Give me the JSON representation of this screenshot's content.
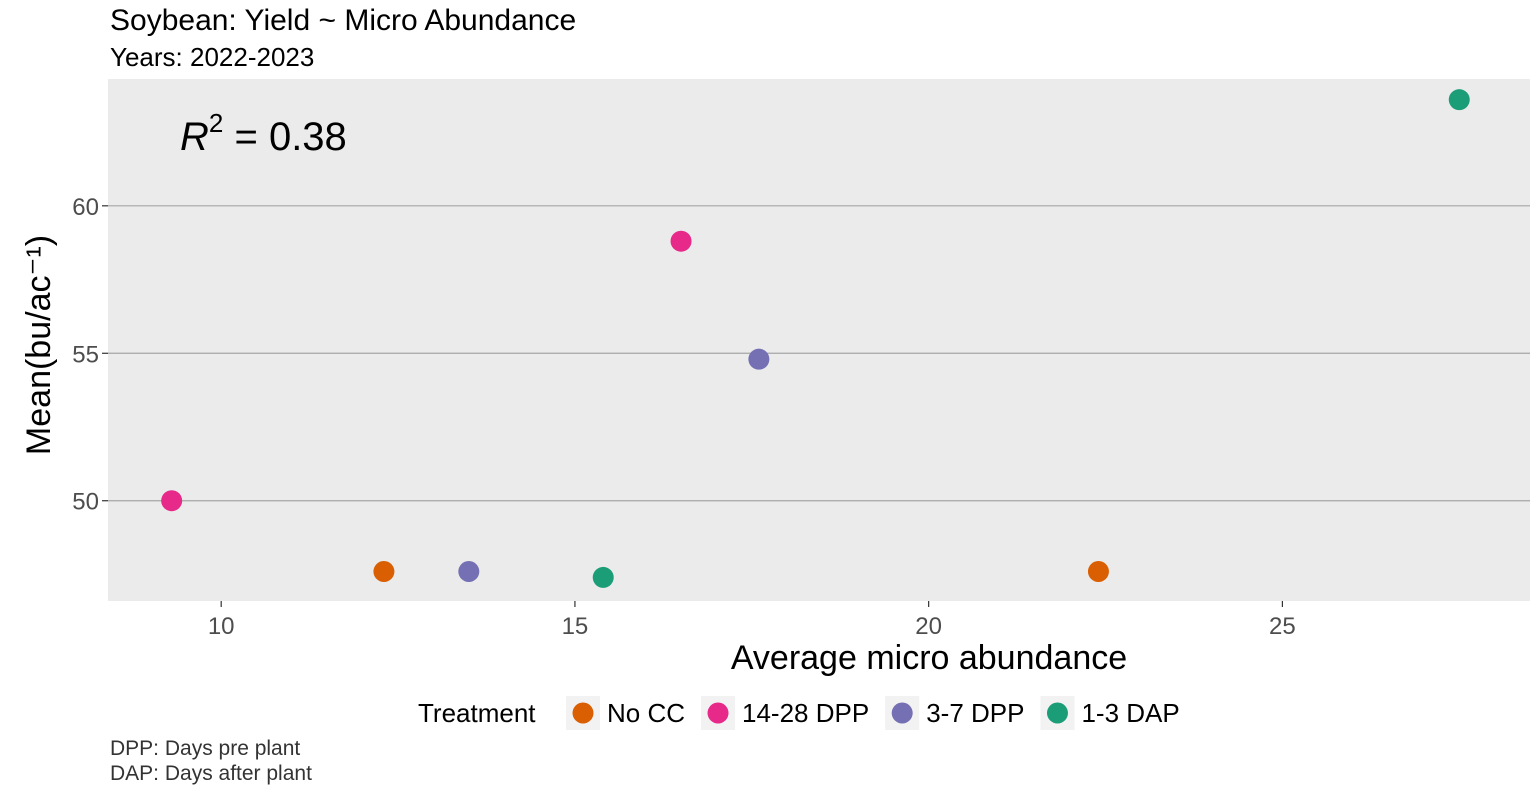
{
  "chart_data": {
    "type": "scatter",
    "title": "Soybean: Yield ~ Micro Abundance",
    "subtitle": "Years: 2022-2023",
    "xlabel": "Average micro abundance",
    "ylabel": "Mean(bu/ac⁻¹)",
    "annotation": {
      "label": "R",
      "sup": "2",
      "text": " = 0.38"
    },
    "xlim": [
      8.4,
      28.5
    ],
    "ylim": [
      46.6,
      64.3
    ],
    "xticks": [
      10,
      15,
      20,
      25
    ],
    "yticks": [
      50,
      55,
      60
    ],
    "grid": "horizontal-major",
    "legend": {
      "title": "Treatment",
      "position": "bottom"
    },
    "series": [
      {
        "name": "No CC",
        "color": "#D95F02",
        "points": [
          {
            "x": 12.3,
            "y": 47.6
          },
          {
            "x": 22.4,
            "y": 47.6
          }
        ]
      },
      {
        "name": "14-28 DPP",
        "color": "#E7298A",
        "points": [
          {
            "x": 9.3,
            "y": 50.0
          },
          {
            "x": 16.5,
            "y": 58.8
          }
        ]
      },
      {
        "name": "3-7 DPP",
        "color": "#7570B3",
        "points": [
          {
            "x": 13.5,
            "y": 47.6
          },
          {
            "x": 17.6,
            "y": 54.8
          }
        ]
      },
      {
        "name": "1-3 DAP",
        "color": "#1B9E77",
        "points": [
          {
            "x": 15.4,
            "y": 47.4
          },
          {
            "x": 27.5,
            "y": 63.6
          }
        ]
      }
    ]
  },
  "captions": [
    "DPP: Days pre plant",
    "DAP: Days after plant"
  ]
}
